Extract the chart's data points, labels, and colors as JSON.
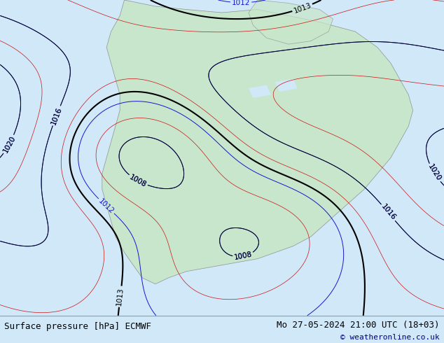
{
  "title_left": "Surface pressure [hPa] ECMWF",
  "title_right": "Mo 27-05-2024 21:00 UTC (18+03)",
  "copyright": "© weatheronline.co.uk",
  "bg_color": "#d0e8f8",
  "land_color": "#c8e6c8",
  "border_color": "#888888",
  "contour_blue_color": "#0000cc",
  "contour_red_color": "#cc0000",
  "contour_black_color": "#000000",
  "label_fontsize": 7.5,
  "footer_fontsize": 9,
  "copyright_fontsize": 8,
  "footer_color": "#000000",
  "copyright_color": "#000080"
}
